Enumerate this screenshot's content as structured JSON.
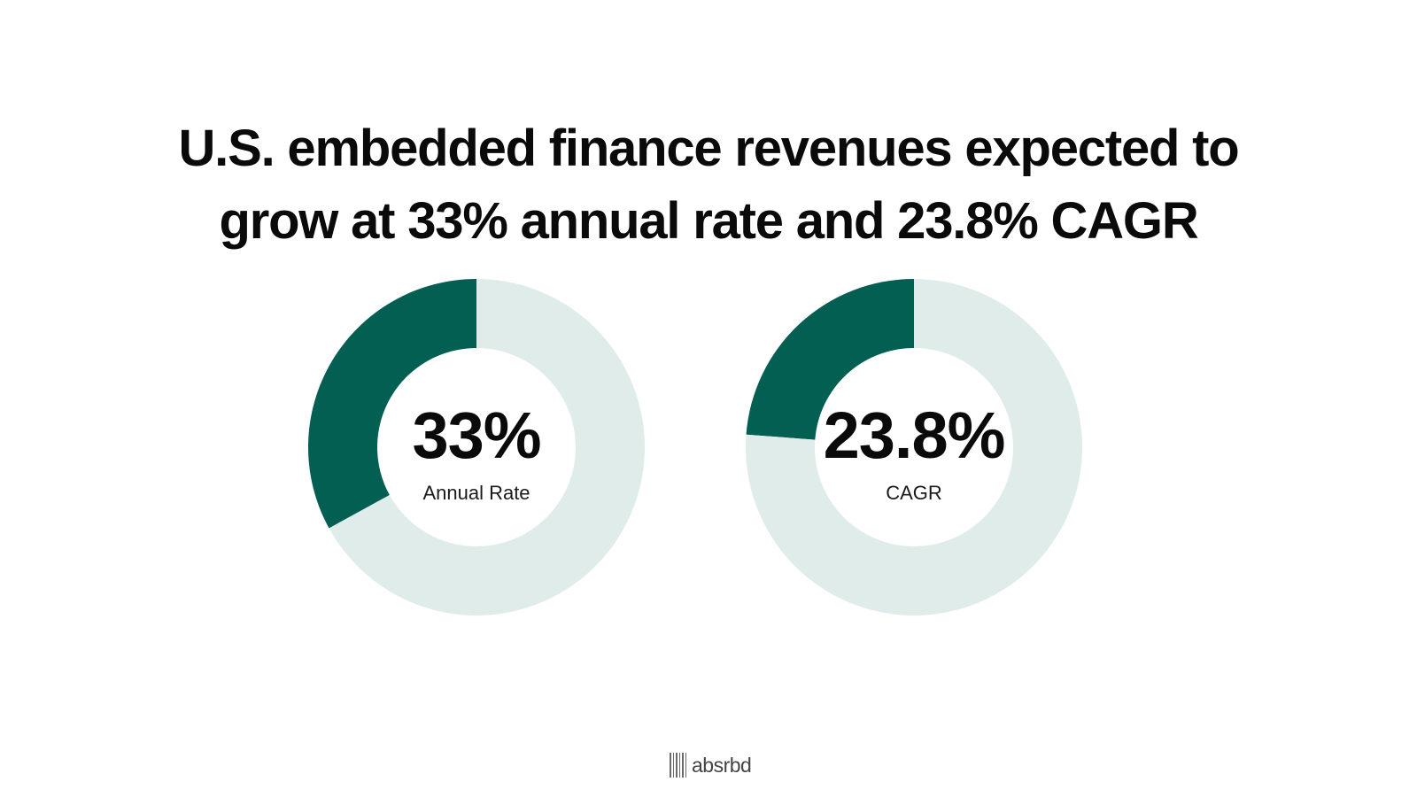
{
  "title": {
    "line1": "U.S. embedded finance revenues expected to",
    "line2": "grow at 33% annual rate and 23.8% CAGR"
  },
  "colors": {
    "filled": "#045f53",
    "track": "#e0ece9",
    "text": "#0a0a0a"
  },
  "chart_data": [
    {
      "type": "pie",
      "style": "donut",
      "values": [
        33,
        67
      ],
      "value_label": "33%",
      "label": "Annual Rate"
    },
    {
      "type": "pie",
      "style": "donut",
      "values": [
        23.8,
        76.2
      ],
      "value_label": "23.8%",
      "label": "CAGR"
    }
  ],
  "logo": {
    "text": "absrbd",
    "icon": "barcode-icon"
  }
}
